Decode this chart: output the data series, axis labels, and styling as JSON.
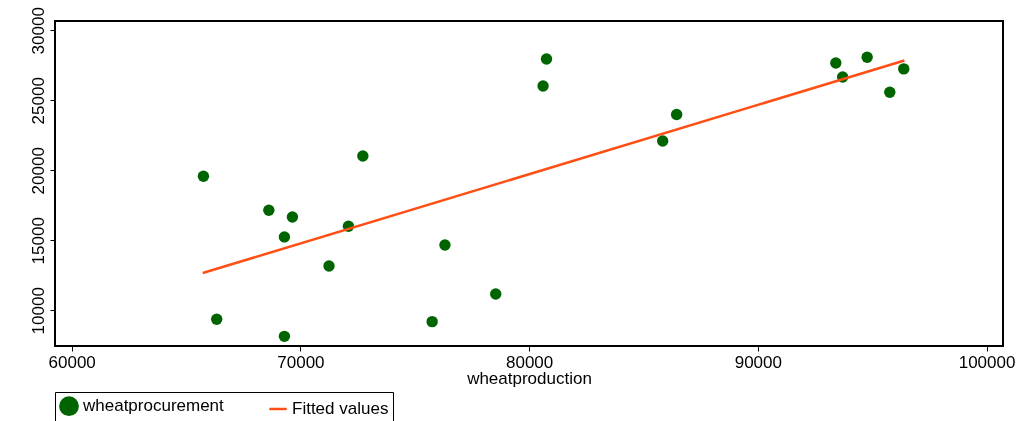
{
  "chart_data": {
    "type": "scatter",
    "xlabel": "wheatproduction",
    "xlim": [
      59270,
      100720
    ],
    "ylim": [
      7450,
      30660
    ],
    "xticks": [
      60000,
      70000,
      80000,
      90000,
      100000
    ],
    "yticks": [
      10000,
      15000,
      20000,
      25000,
      30000
    ],
    "grid": false,
    "legend": "bottom",
    "series": [
      {
        "name": "wheatprocurement",
        "marker": "circle",
        "color": "#006400",
        "x": [
          65760,
          66340,
          68620,
          69300,
          69650,
          69300,
          71250,
          72100,
          72730,
          75760,
          76320,
          78540,
          80610,
          80760,
          85840,
          86450,
          93410,
          93710,
          94780,
          95770,
          96380
        ],
        "values": [
          19570,
          9360,
          17140,
          15240,
          16660,
          8140,
          13160,
          16000,
          21020,
          9190,
          14660,
          11160,
          26020,
          27950,
          22090,
          23980,
          27660,
          26660,
          28070,
          25570,
          27240
        ]
      },
      {
        "name": "Fitted values",
        "type": "line",
        "color": "#ff4f14",
        "line_style": "solid",
        "x": [
          65730,
          96410
        ],
        "values": [
          12660,
          27840
        ]
      }
    ]
  }
}
